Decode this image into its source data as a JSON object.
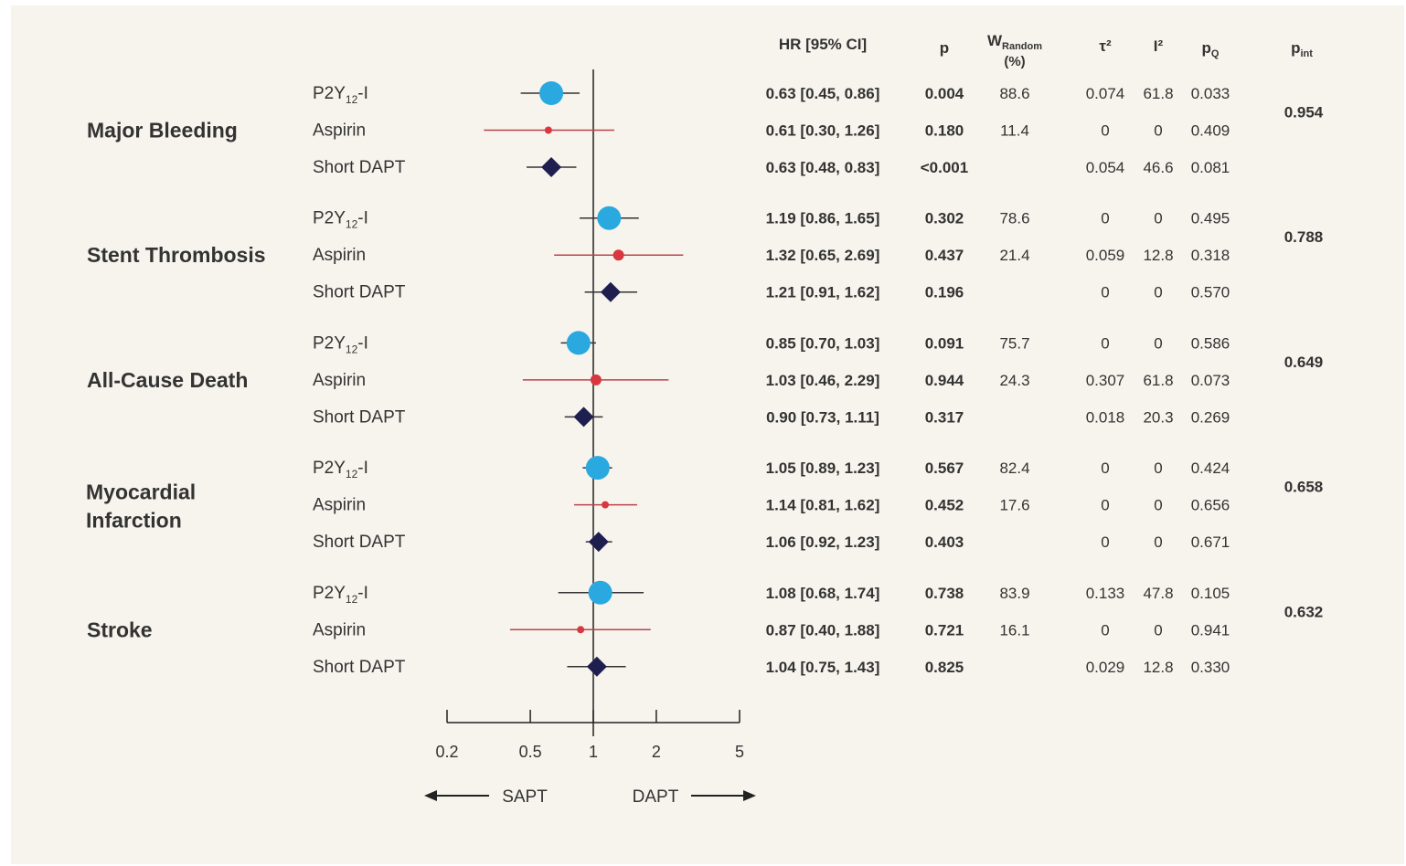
{
  "columns": {
    "hr": "HR  [95% CI]",
    "p": "p",
    "w_main": "W",
    "w_sub": "Random",
    "w_unit": "(%)",
    "tau": "τ²",
    "i2": "I²",
    "pq_main": "p",
    "pq_sub": "Q",
    "pint_main": "p",
    "pint_sub": "int"
  },
  "legend": {
    "left": "SAPT",
    "right": "DAPT"
  },
  "colors": {
    "p2y12": "#29a9e0",
    "aspirin": "#d9373f",
    "short_dapt": "#1f1f4f",
    "background": "#f7f4ed",
    "text": "#333333"
  },
  "chart_data": {
    "type": "forest",
    "x_scale": "log",
    "xlim": [
      0.2,
      5
    ],
    "xticks": [
      "0.2",
      "0.5",
      "1",
      "2",
      "5"
    ],
    "reference_line": 1,
    "groups": [
      {
        "outcome": [
          "Major Bleeding"
        ],
        "p_int": "0.954",
        "rows": [
          {
            "label": "P2Y",
            "sub": "12",
            "suffix": "-I",
            "marker": "p2y12",
            "hr": 0.63,
            "lo": 0.45,
            "hi": 0.86,
            "hr_text": "0.63  [0.45, 0.86]",
            "p": "0.004",
            "w": "88.6",
            "tau2": "0.074",
            "i2": "61.8",
            "pq": "0.033"
          },
          {
            "label": "Aspirin",
            "marker": "aspirin",
            "hr": 0.61,
            "lo": 0.3,
            "hi": 1.26,
            "hr_text": "0.61  [0.30, 1.26]",
            "p": "0.180",
            "w": "11.4",
            "tau2": "0",
            "i2": "0",
            "pq": "0.409"
          },
          {
            "label": "Short DAPT",
            "marker": "short_dapt",
            "hr": 0.63,
            "lo": 0.48,
            "hi": 0.83,
            "hr_text": "0.63  [0.48, 0.83]",
            "p": "<0.001",
            "w": "",
            "tau2": "0.054",
            "i2": "46.6",
            "pq": "0.081"
          }
        ]
      },
      {
        "outcome": [
          "Stent Thrombosis"
        ],
        "p_int": "0.788",
        "rows": [
          {
            "label": "P2Y",
            "sub": "12",
            "suffix": "-I",
            "marker": "p2y12",
            "hr": 1.19,
            "lo": 0.86,
            "hi": 1.65,
            "hr_text": "1.19  [0.86, 1.65]",
            "p": "0.302",
            "w": "78.6",
            "tau2": "0",
            "i2": "0",
            "pq": "0.495"
          },
          {
            "label": "Aspirin",
            "marker": "aspirin",
            "hr": 1.32,
            "lo": 0.65,
            "hi": 2.69,
            "hr_text": "1.32  [0.65, 2.69]",
            "p": "0.437",
            "w": "21.4",
            "tau2": "0.059",
            "i2": "12.8",
            "pq": "0.318"
          },
          {
            "label": "Short DAPT",
            "marker": "short_dapt",
            "hr": 1.21,
            "lo": 0.91,
            "hi": 1.62,
            "hr_text": "1.21  [0.91, 1.62]",
            "p": "0.196",
            "w": "",
            "tau2": "0",
            "i2": "0",
            "pq": "0.570"
          }
        ]
      },
      {
        "outcome": [
          "All-Cause Death"
        ],
        "p_int": "0.649",
        "rows": [
          {
            "label": "P2Y",
            "sub": "12",
            "suffix": "-I",
            "marker": "p2y12",
            "hr": 0.85,
            "lo": 0.7,
            "hi": 1.03,
            "hr_text": "0.85  [0.70, 1.03]",
            "p": "0.091",
            "w": "75.7",
            "tau2": "0",
            "i2": "0",
            "pq": "0.586"
          },
          {
            "label": "Aspirin",
            "marker": "aspirin",
            "hr": 1.03,
            "lo": 0.46,
            "hi": 2.29,
            "hr_text": "1.03  [0.46, 2.29]",
            "p": "0.944",
            "w": "24.3",
            "tau2": "0.307",
            "i2": "61.8",
            "pq": "0.073"
          },
          {
            "label": "Short DAPT",
            "marker": "short_dapt",
            "hr": 0.9,
            "lo": 0.73,
            "hi": 1.11,
            "hr_text": "0.90  [0.73, 1.11]",
            "p": "0.317",
            "w": "",
            "tau2": "0.018",
            "i2": "20.3",
            "pq": "0.269"
          }
        ]
      },
      {
        "outcome": [
          "Myocardial",
          "Infarction"
        ],
        "p_int": "0.658",
        "rows": [
          {
            "label": "P2Y",
            "sub": "12",
            "suffix": "-I",
            "marker": "p2y12",
            "hr": 1.05,
            "lo": 0.89,
            "hi": 1.23,
            "hr_text": "1.05  [0.89, 1.23]",
            "p": "0.567",
            "w": "82.4",
            "tau2": "0",
            "i2": "0",
            "pq": "0.424"
          },
          {
            "label": "Aspirin",
            "marker": "aspirin",
            "hr": 1.14,
            "lo": 0.81,
            "hi": 1.62,
            "hr_text": "1.14  [0.81, 1.62]",
            "p": "0.452",
            "w": "17.6",
            "tau2": "0",
            "i2": "0",
            "pq": "0.656"
          },
          {
            "label": "Short DAPT",
            "marker": "short_dapt",
            "hr": 1.06,
            "lo": 0.92,
            "hi": 1.23,
            "hr_text": "1.06  [0.92, 1.23]",
            "p": "0.403",
            "w": "",
            "tau2": "0",
            "i2": "0",
            "pq": "0.671"
          }
        ]
      },
      {
        "outcome": [
          "Stroke"
        ],
        "p_int": "0.632",
        "rows": [
          {
            "label": "P2Y",
            "sub": "12",
            "suffix": "-I",
            "marker": "p2y12",
            "hr": 1.08,
            "lo": 0.68,
            "hi": 1.74,
            "hr_text": "1.08  [0.68, 1.74]",
            "p": "0.738",
            "w": "83.9",
            "tau2": "0.133",
            "i2": "47.8",
            "pq": "0.105"
          },
          {
            "label": "Aspirin",
            "marker": "aspirin",
            "hr": 0.87,
            "lo": 0.4,
            "hi": 1.88,
            "hr_text": "0.87  [0.40, 1.88]",
            "p": "0.721",
            "w": "16.1",
            "tau2": "0",
            "i2": "0",
            "pq": "0.941"
          },
          {
            "label": "Short DAPT",
            "marker": "short_dapt",
            "hr": 1.04,
            "lo": 0.75,
            "hi": 1.43,
            "hr_text": "1.04  [0.75, 1.43]",
            "p": "0.825",
            "w": "",
            "tau2": "0.029",
            "i2": "12.8",
            "pq": "0.330"
          }
        ]
      }
    ]
  }
}
